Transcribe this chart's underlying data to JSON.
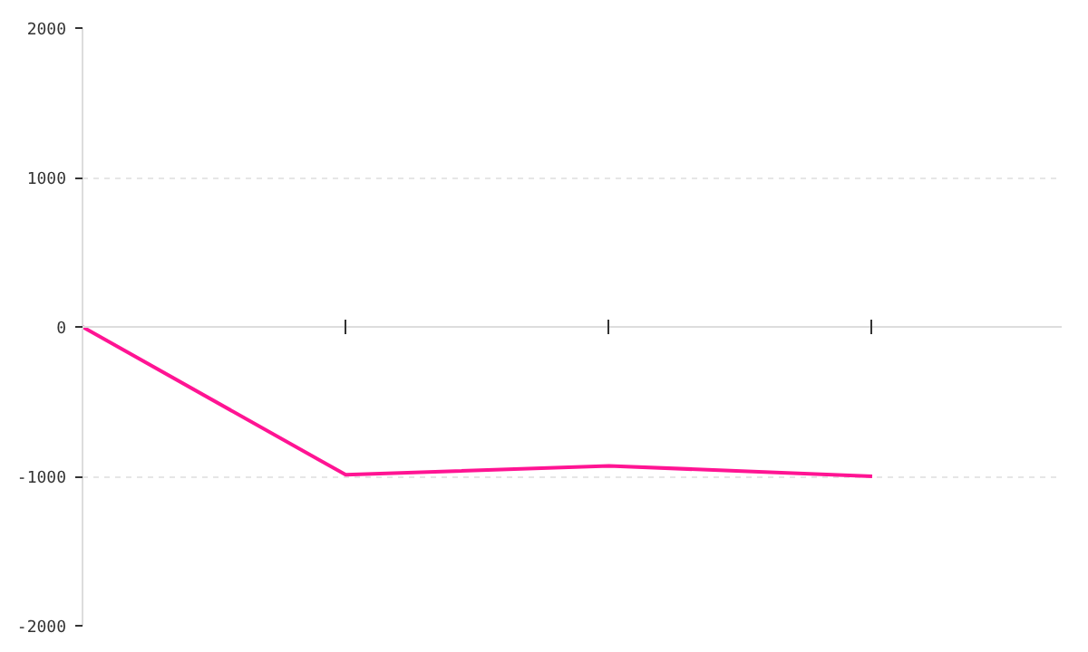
{
  "chart_data": {
    "type": "line",
    "categories": [
      null,
      null,
      null,
      null
    ],
    "series": [
      {
        "color": "#ff1493",
        "values": [
          0,
          -990,
          -930,
          -1000
        ]
      }
    ],
    "ylim": [
      -2000,
      2000
    ],
    "yticks": [
      -2000,
      -1000,
      0,
      1000,
      2000
    ],
    "grid": "y",
    "tick_labels": "y",
    "marker": "none",
    "line_style": "solid"
  }
}
